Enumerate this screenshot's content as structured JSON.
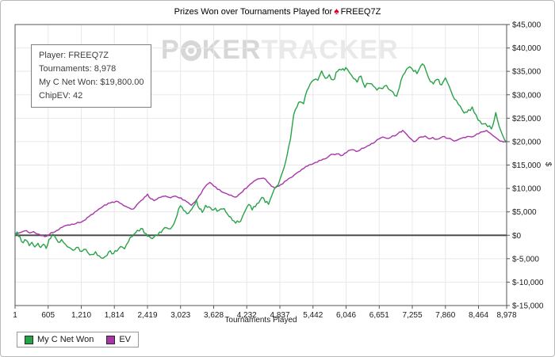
{
  "title": {
    "prefix": "Prizes Won over Tournaments Played for",
    "player": "FREEQ7Z"
  },
  "watermark": {
    "p": "P",
    "ker": "KER",
    "tracker": "TRACKER"
  },
  "infobox": {
    "lines": [
      "Player: FREEQ7Z",
      "Tournaments: 8,978",
      "My C Net Won: $19,800.00",
      "ChipEV: 42"
    ]
  },
  "colors": {
    "net_won_line": "#27a347",
    "ev_line": "#a935a8",
    "grid": "#e8e8e8",
    "zero_line": "#4d4d4d",
    "axis": "#555555",
    "tick_text": "#1a1a1a",
    "spade": "#d6001c"
  },
  "chart_data": {
    "type": "line",
    "title": "Prizes Won over Tournaments Played for FREEQ7Z",
    "xlabel": "Tournaments Played",
    "ylabel": "$",
    "xlim": [
      1,
      8978
    ],
    "ylim": [
      -15000,
      45000
    ],
    "grid": true,
    "legend_position": "bottom-left",
    "xticks": [
      {
        "v": 1,
        "t": "1"
      },
      {
        "v": 605,
        "t": "605"
      },
      {
        "v": 1210,
        "t": "1,210"
      },
      {
        "v": 1814,
        "t": "1,814"
      },
      {
        "v": 2419,
        "t": "2,419"
      },
      {
        "v": 3023,
        "t": "3,023"
      },
      {
        "v": 3628,
        "t": "3,628"
      },
      {
        "v": 4232,
        "t": "4,232"
      },
      {
        "v": 4837,
        "t": "4,837"
      },
      {
        "v": 5442,
        "t": "5,442"
      },
      {
        "v": 6046,
        "t": "6,046"
      },
      {
        "v": 6651,
        "t": "6,651"
      },
      {
        "v": 7255,
        "t": "7,255"
      },
      {
        "v": 7860,
        "t": "7,860"
      },
      {
        "v": 8464,
        "t": "8,464"
      },
      {
        "v": 8978,
        "t": "8,978"
      }
    ],
    "yticks": [
      {
        "v": 45000,
        "t": "$45,000"
      },
      {
        "v": 40000,
        "t": "$40,000"
      },
      {
        "v": 35000,
        "t": "$35,000"
      },
      {
        "v": 30000,
        "t": "$30,000"
      },
      {
        "v": 25000,
        "t": "$25,000"
      },
      {
        "v": 20000,
        "t": "$20,000"
      },
      {
        "v": 15000,
        "t": "$15,000"
      },
      {
        "v": 10000,
        "t": "$10,000"
      },
      {
        "v": 5000,
        "t": "$5,000"
      },
      {
        "v": 0,
        "t": "$0"
      },
      {
        "v": -5000,
        "t": "$-5,000"
      },
      {
        "v": -10000,
        "t": "$-10,000"
      },
      {
        "v": -15000,
        "t": "$-15,000"
      }
    ],
    "series": [
      {
        "name": "My C Net Won",
        "color": "#27a347",
        "jitter": 450,
        "points": [
          [
            1,
            100
          ],
          [
            40,
            700
          ],
          [
            90,
            -300
          ],
          [
            150,
            -1600
          ],
          [
            210,
            -1100
          ],
          [
            260,
            -2200
          ],
          [
            310,
            -1500
          ],
          [
            360,
            -2500
          ],
          [
            420,
            -1700
          ],
          [
            470,
            -2600
          ],
          [
            520,
            -1900
          ],
          [
            570,
            -2800
          ],
          [
            620,
            -900
          ],
          [
            680,
            200
          ],
          [
            730,
            -300
          ],
          [
            790,
            -1500
          ],
          [
            850,
            -900
          ],
          [
            920,
            -1900
          ],
          [
            990,
            -2600
          ],
          [
            1060,
            -3200
          ],
          [
            1120,
            -2600
          ],
          [
            1190,
            -3400
          ],
          [
            1260,
            -3000
          ],
          [
            1330,
            -3700
          ],
          [
            1400,
            -4100
          ],
          [
            1470,
            -3500
          ],
          [
            1540,
            -4400
          ],
          [
            1610,
            -4900
          ],
          [
            1680,
            -4300
          ],
          [
            1740,
            -3300
          ],
          [
            1800,
            -3900
          ],
          [
            1860,
            -3400
          ],
          [
            1930,
            -2400
          ],
          [
            2000,
            -2900
          ],
          [
            2070,
            -1400
          ],
          [
            2140,
            -300
          ],
          [
            2200,
            500
          ],
          [
            2270,
            900
          ],
          [
            2330,
            1400
          ],
          [
            2390,
            400
          ],
          [
            2450,
            -200
          ],
          [
            2510,
            -700
          ],
          [
            2570,
            100
          ],
          [
            2640,
            700
          ],
          [
            2700,
            1200
          ],
          [
            2770,
            1600
          ],
          [
            2840,
            1400
          ],
          [
            2900,
            2400
          ],
          [
            2960,
            4300
          ],
          [
            3020,
            6300
          ],
          [
            3080,
            5300
          ],
          [
            3140,
            4600
          ],
          [
            3200,
            5200
          ],
          [
            3260,
            6300
          ],
          [
            3310,
            7600
          ],
          [
            3370,
            5600
          ],
          [
            3420,
            4900
          ],
          [
            3480,
            6400
          ],
          [
            3540,
            6100
          ],
          [
            3600,
            5400
          ],
          [
            3660,
            5800
          ],
          [
            3720,
            5300
          ],
          [
            3790,
            5600
          ],
          [
            3850,
            5000
          ],
          [
            3910,
            4000
          ],
          [
            3970,
            3200
          ],
          [
            4030,
            2600
          ],
          [
            4090,
            2800
          ],
          [
            4150,
            3900
          ],
          [
            4210,
            5400
          ],
          [
            4270,
            6600
          ],
          [
            4330,
            5400
          ],
          [
            4390,
            6100
          ],
          [
            4450,
            6900
          ],
          [
            4510,
            8100
          ],
          [
            4570,
            7000
          ],
          [
            4630,
            6600
          ],
          [
            4700,
            8800
          ],
          [
            4770,
            10400
          ],
          [
            4840,
            12000
          ],
          [
            4910,
            14300
          ],
          [
            4970,
            17200
          ],
          [
            5030,
            20500
          ],
          [
            5090,
            25800
          ],
          [
            5150,
            27400
          ],
          [
            5210,
            28500
          ],
          [
            5270,
            28100
          ],
          [
            5330,
            30800
          ],
          [
            5390,
            32300
          ],
          [
            5460,
            33200
          ],
          [
            5530,
            33100
          ],
          [
            5600,
            35100
          ],
          [
            5670,
            33500
          ],
          [
            5740,
            34300
          ],
          [
            5810,
            33200
          ],
          [
            5890,
            35000
          ],
          [
            5960,
            35300
          ],
          [
            6040,
            35800
          ],
          [
            6110,
            34700
          ],
          [
            6180,
            33500
          ],
          [
            6250,
            32700
          ],
          [
            6320,
            34000
          ],
          [
            6390,
            31600
          ],
          [
            6460,
            32400
          ],
          [
            6540,
            31900
          ],
          [
            6610,
            31000
          ],
          [
            6680,
            31400
          ],
          [
            6750,
            31900
          ],
          [
            6820,
            31200
          ],
          [
            6900,
            30600
          ],
          [
            6970,
            29700
          ],
          [
            7050,
            33100
          ],
          [
            7120,
            34700
          ],
          [
            7210,
            36000
          ],
          [
            7280,
            35000
          ],
          [
            7340,
            34500
          ],
          [
            7440,
            36600
          ],
          [
            7510,
            35000
          ],
          [
            7560,
            33400
          ],
          [
            7640,
            32300
          ],
          [
            7710,
            33300
          ],
          [
            7790,
            32100
          ],
          [
            7860,
            33600
          ],
          [
            7930,
            31800
          ],
          [
            7990,
            29900
          ],
          [
            8060,
            28800
          ],
          [
            8130,
            27600
          ],
          [
            8200,
            26100
          ],
          [
            8280,
            26800
          ],
          [
            8350,
            27400
          ],
          [
            8420,
            25700
          ],
          [
            8490,
            24400
          ],
          [
            8560,
            23800
          ],
          [
            8630,
            23200
          ],
          [
            8700,
            22700
          ],
          [
            8780,
            26200
          ],
          [
            8840,
            23300
          ],
          [
            8900,
            21500
          ],
          [
            8940,
            20400
          ],
          [
            8978,
            19900
          ]
        ]
      },
      {
        "name": "EV",
        "color": "#a935a8",
        "jitter": 200,
        "points": [
          [
            1,
            100
          ],
          [
            70,
            500
          ],
          [
            140,
            800
          ],
          [
            210,
            1000
          ],
          [
            270,
            500
          ],
          [
            340,
            800
          ],
          [
            410,
            300
          ],
          [
            480,
            -100
          ],
          [
            550,
            -300
          ],
          [
            620,
            100
          ],
          [
            690,
            600
          ],
          [
            760,
            1000
          ],
          [
            830,
            1600
          ],
          [
            900,
            2000
          ],
          [
            970,
            2200
          ],
          [
            1040,
            2400
          ],
          [
            1110,
            2500
          ],
          [
            1180,
            2700
          ],
          [
            1250,
            3100
          ],
          [
            1320,
            3800
          ],
          [
            1390,
            4400
          ],
          [
            1460,
            5000
          ],
          [
            1530,
            5600
          ],
          [
            1600,
            6100
          ],
          [
            1670,
            6500
          ],
          [
            1740,
            6900
          ],
          [
            1810,
            7000
          ],
          [
            1880,
            7200
          ],
          [
            1950,
            6700
          ],
          [
            2020,
            6200
          ],
          [
            2090,
            5800
          ],
          [
            2160,
            5600
          ],
          [
            2230,
            6600
          ],
          [
            2300,
            7400
          ],
          [
            2370,
            8200
          ],
          [
            2420,
            8800
          ],
          [
            2480,
            7800
          ],
          [
            2540,
            7400
          ],
          [
            2600,
            7800
          ],
          [
            2660,
            8100
          ],
          [
            2720,
            8300
          ],
          [
            2780,
            8200
          ],
          [
            2840,
            8000
          ],
          [
            2900,
            8300
          ],
          [
            2960,
            8200
          ],
          [
            3030,
            8000
          ],
          [
            3100,
            7500
          ],
          [
            3160,
            7000
          ],
          [
            3220,
            6400
          ],
          [
            3290,
            7200
          ],
          [
            3360,
            8400
          ],
          [
            3430,
            9700
          ],
          [
            3500,
            10800
          ],
          [
            3560,
            11300
          ],
          [
            3630,
            10500
          ],
          [
            3700,
            9800
          ],
          [
            3770,
            9300
          ],
          [
            3840,
            9000
          ],
          [
            3910,
            8600
          ],
          [
            3980,
            8300
          ],
          [
            4050,
            8200
          ],
          [
            4120,
            9000
          ],
          [
            4190,
            9900
          ],
          [
            4260,
            10500
          ],
          [
            4330,
            11200
          ],
          [
            4400,
            11800
          ],
          [
            4470,
            12100
          ],
          [
            4540,
            12200
          ],
          [
            4610,
            11400
          ],
          [
            4680,
            10500
          ],
          [
            4750,
            10100
          ],
          [
            4820,
            10500
          ],
          [
            4890,
            11000
          ],
          [
            4960,
            11700
          ],
          [
            5030,
            12300
          ],
          [
            5100,
            12900
          ],
          [
            5170,
            13500
          ],
          [
            5240,
            14100
          ],
          [
            5310,
            14700
          ],
          [
            5380,
            15100
          ],
          [
            5450,
            15300
          ],
          [
            5520,
            15600
          ],
          [
            5590,
            16000
          ],
          [
            5660,
            16300
          ],
          [
            5740,
            17000
          ],
          [
            5810,
            17300
          ],
          [
            5880,
            17400
          ],
          [
            5950,
            17000
          ],
          [
            6020,
            17500
          ],
          [
            6090,
            18100
          ],
          [
            6160,
            18300
          ],
          [
            6230,
            17900
          ],
          [
            6300,
            18200
          ],
          [
            6370,
            18600
          ],
          [
            6440,
            19100
          ],
          [
            6510,
            19600
          ],
          [
            6580,
            20000
          ],
          [
            6650,
            20600
          ],
          [
            6720,
            21000
          ],
          [
            6790,
            20700
          ],
          [
            6860,
            20900
          ],
          [
            6930,
            21200
          ],
          [
            7000,
            21800
          ],
          [
            7080,
            22400
          ],
          [
            7150,
            21600
          ],
          [
            7220,
            20700
          ],
          [
            7280,
            20000
          ],
          [
            7350,
            20500
          ],
          [
            7420,
            21000
          ],
          [
            7490,
            21200
          ],
          [
            7560,
            20600
          ],
          [
            7630,
            20900
          ],
          [
            7700,
            20500
          ],
          [
            7770,
            20800
          ],
          [
            7840,
            21100
          ],
          [
            7910,
            20700
          ],
          [
            7980,
            20400
          ],
          [
            8050,
            20200
          ],
          [
            8120,
            20600
          ],
          [
            8190,
            20900
          ],
          [
            8260,
            21100
          ],
          [
            8330,
            21000
          ],
          [
            8400,
            21300
          ],
          [
            8470,
            21700
          ],
          [
            8540,
            22100
          ],
          [
            8610,
            22400
          ],
          [
            8680,
            21800
          ],
          [
            8750,
            21100
          ],
          [
            8820,
            20500
          ],
          [
            8890,
            20100
          ],
          [
            8940,
            20000
          ],
          [
            8978,
            19900
          ]
        ]
      }
    ]
  }
}
